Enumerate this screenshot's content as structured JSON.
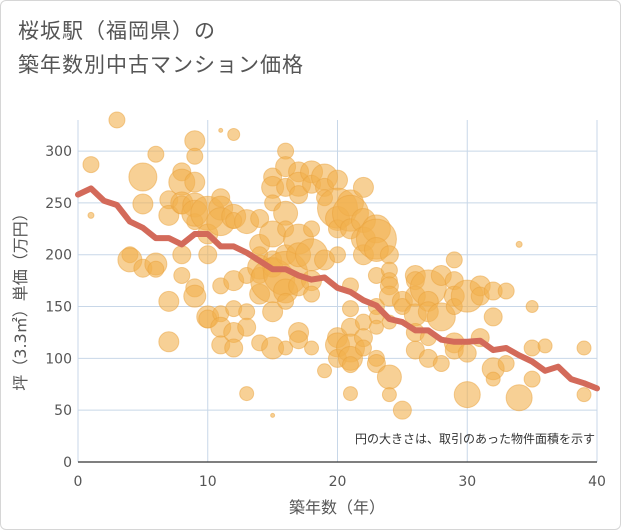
{
  "chart_data": {
    "type": "scatter",
    "title_lines": [
      "桜坂駅（福岡県）の",
      "築年数別中古マンション価格"
    ],
    "xlabel": "築年数（年）",
    "ylabel": "坪（3.3㎡）単価（万円）",
    "note": "円の大きさは、取引のあった物件面積を示す",
    "xlim": [
      0,
      40
    ],
    "ylim": [
      0,
      330
    ],
    "x_ticks": [
      0,
      10,
      20,
      30,
      40
    ],
    "y_ticks": [
      0,
      50,
      100,
      150,
      200,
      250,
      300
    ],
    "grid": true,
    "colors": {
      "bubble": "#f2b04e",
      "trend": "#d36a5a",
      "grid": "#c8d7e8"
    },
    "trend": {
      "x": [
        0,
        1,
        2,
        3,
        4,
        5,
        6,
        7,
        8,
        9,
        10,
        11,
        12,
        13,
        14,
        15,
        16,
        17,
        18,
        19,
        20,
        21,
        22,
        23,
        24,
        25,
        26,
        27,
        28,
        29,
        30,
        31,
        32,
        33,
        34,
        35,
        36,
        37,
        38,
        39,
        40
      ],
      "y": [
        258,
        264,
        252,
        248,
        232,
        226,
        216,
        216,
        210,
        220,
        220,
        208,
        208,
        202,
        194,
        186,
        186,
        180,
        176,
        178,
        168,
        164,
        156,
        151,
        138,
        135,
        127,
        127,
        118,
        116,
        116,
        117,
        108,
        110,
        103,
        97,
        88,
        92,
        80,
        76,
        71
      ]
    },
    "points": [
      [
        1,
        287,
        8
      ],
      [
        3,
        330,
        8
      ],
      [
        4,
        200,
        8
      ],
      [
        4,
        195,
        12
      ],
      [
        5,
        275,
        14
      ],
      [
        5,
        249,
        10
      ],
      [
        5,
        187,
        9
      ],
      [
        6,
        297,
        8
      ],
      [
        6,
        191,
        11
      ],
      [
        6,
        186,
        8
      ],
      [
        7,
        253,
        9
      ],
      [
        7,
        238,
        10
      ],
      [
        7,
        155,
        10
      ],
      [
        7,
        116,
        10
      ],
      [
        8,
        280,
        9
      ],
      [
        8,
        270,
        13
      ],
      [
        8,
        250,
        11
      ],
      [
        8,
        248,
        9
      ],
      [
        8,
        200,
        9
      ],
      [
        8,
        180,
        8
      ],
      [
        9,
        310,
        10
      ],
      [
        9,
        295,
        8
      ],
      [
        9,
        270,
        10
      ],
      [
        9,
        248,
        12
      ],
      [
        9,
        232,
        8
      ],
      [
        9,
        240,
        13
      ],
      [
        9,
        168,
        9
      ],
      [
        9,
        160,
        11
      ],
      [
        10,
        240,
        17
      ],
      [
        10,
        220,
        10
      ],
      [
        10,
        200,
        9
      ],
      [
        10,
        140,
        11
      ],
      [
        10,
        138,
        9
      ],
      [
        11,
        255,
        9
      ],
      [
        11,
        245,
        12
      ],
      [
        11,
        232,
        14
      ],
      [
        11,
        170,
        8
      ],
      [
        11,
        143,
        8
      ],
      [
        11,
        130,
        10
      ],
      [
        11,
        113,
        9
      ],
      [
        12,
        316,
        6
      ],
      [
        12,
        237,
        12
      ],
      [
        12,
        233,
        8
      ],
      [
        12,
        175,
        10
      ],
      [
        12,
        148,
        8
      ],
      [
        12,
        125,
        10
      ],
      [
        12,
        110,
        9
      ],
      [
        13,
        232,
        12
      ],
      [
        13,
        180,
        8
      ],
      [
        13,
        145,
        8
      ],
      [
        13,
        130,
        9
      ],
      [
        13,
        66,
        7
      ],
      [
        14,
        235,
        9
      ],
      [
        14,
        210,
        10
      ],
      [
        14,
        200,
        8
      ],
      [
        14,
        188,
        12
      ],
      [
        14,
        180,
        8
      ],
      [
        14,
        162,
        10
      ],
      [
        14,
        115,
        8
      ],
      [
        15,
        275,
        9
      ],
      [
        15,
        265,
        11
      ],
      [
        15,
        250,
        8
      ],
      [
        15,
        220,
        13
      ],
      [
        15,
        195,
        9
      ],
      [
        15,
        188,
        10
      ],
      [
        15,
        175,
        22
      ],
      [
        15,
        145,
        10
      ],
      [
        15,
        110,
        11
      ],
      [
        16,
        300,
        8
      ],
      [
        16,
        285,
        10
      ],
      [
        16,
        265,
        9
      ],
      [
        16,
        240,
        12
      ],
      [
        16,
        225,
        8
      ],
      [
        16,
        200,
        10
      ],
      [
        16,
        182,
        22
      ],
      [
        16,
        165,
        12
      ],
      [
        16,
        155,
        8
      ],
      [
        16,
        110,
        7
      ],
      [
        17,
        280,
        10
      ],
      [
        17,
        268,
        12
      ],
      [
        17,
        258,
        9
      ],
      [
        17,
        215,
        15
      ],
      [
        17,
        200,
        12
      ],
      [
        17,
        170,
        10
      ],
      [
        17,
        125,
        10
      ],
      [
        17,
        118,
        9
      ],
      [
        18,
        280,
        11
      ],
      [
        18,
        268,
        9
      ],
      [
        18,
        225,
        8
      ],
      [
        18,
        200,
        16
      ],
      [
        18,
        175,
        10
      ],
      [
        18,
        162,
        8
      ],
      [
        18,
        110,
        7
      ],
      [
        19,
        275,
        13
      ],
      [
        19,
        265,
        9
      ],
      [
        19,
        255,
        8
      ],
      [
        19,
        195,
        10
      ],
      [
        19,
        88,
        7
      ],
      [
        20,
        272,
        10
      ],
      [
        20,
        245,
        20
      ],
      [
        20,
        235,
        12
      ],
      [
        20,
        225,
        9
      ],
      [
        20,
        200,
        8
      ],
      [
        20,
        120,
        10
      ],
      [
        20,
        113,
        12
      ],
      [
        20,
        100,
        9
      ],
      [
        21,
        250,
        13
      ],
      [
        21,
        240,
        18
      ],
      [
        21,
        225,
        10
      ],
      [
        21,
        170,
        8
      ],
      [
        21,
        148,
        8
      ],
      [
        21,
        130,
        9
      ],
      [
        21,
        110,
        14
      ],
      [
        21,
        100,
        12
      ],
      [
        21,
        94,
        8
      ],
      [
        21,
        66,
        7
      ],
      [
        22,
        265,
        10
      ],
      [
        22,
        233,
        12
      ],
      [
        22,
        215,
        12
      ],
      [
        22,
        200,
        10
      ],
      [
        22,
        135,
        8
      ],
      [
        22,
        120,
        9
      ],
      [
        22,
        110,
        8
      ],
      [
        23,
        225,
        14
      ],
      [
        23,
        215,
        20
      ],
      [
        23,
        205,
        12
      ],
      [
        23,
        180,
        8
      ],
      [
        23,
        150,
        8
      ],
      [
        23,
        140,
        7
      ],
      [
        23,
        130,
        7
      ],
      [
        23,
        100,
        8
      ],
      [
        23,
        95,
        9
      ],
      [
        24,
        200,
        9
      ],
      [
        24,
        185,
        8
      ],
      [
        24,
        175,
        8
      ],
      [
        24,
        170,
        9
      ],
      [
        24,
        160,
        10
      ],
      [
        24,
        135,
        7
      ],
      [
        24,
        82,
        12
      ],
      [
        24,
        65,
        7
      ],
      [
        25,
        50,
        9
      ],
      [
        25,
        155,
        10
      ],
      [
        25,
        150,
        8
      ],
      [
        26,
        180,
        10
      ],
      [
        26,
        175,
        9
      ],
      [
        26,
        160,
        10
      ],
      [
        26,
        142,
        11
      ],
      [
        26,
        125,
        9
      ],
      [
        26,
        108,
        9
      ],
      [
        27,
        168,
        18
      ],
      [
        27,
        155,
        10
      ],
      [
        27,
        145,
        10
      ],
      [
        27,
        120,
        8
      ],
      [
        27,
        100,
        9
      ],
      [
        28,
        180,
        10
      ],
      [
        28,
        140,
        14
      ],
      [
        28,
        95,
        8
      ],
      [
        29,
        195,
        8
      ],
      [
        29,
        175,
        9
      ],
      [
        29,
        160,
        10
      ],
      [
        29,
        150,
        8
      ],
      [
        29,
        115,
        10
      ],
      [
        29,
        108,
        9
      ],
      [
        30,
        160,
        16
      ],
      [
        30,
        105,
        9
      ],
      [
        30,
        65,
        13
      ],
      [
        31,
        170,
        10
      ],
      [
        31,
        160,
        9
      ],
      [
        31,
        120,
        9
      ],
      [
        32,
        165,
        9
      ],
      [
        32,
        140,
        9
      ],
      [
        32,
        90,
        11
      ],
      [
        32,
        80,
        7
      ],
      [
        33,
        165,
        8
      ],
      [
        33,
        95,
        8
      ],
      [
        34,
        62,
        13
      ],
      [
        35,
        150,
        6
      ],
      [
        35,
        110,
        8
      ],
      [
        35,
        80,
        8
      ],
      [
        36,
        112,
        7
      ],
      [
        39,
        110,
        7
      ],
      [
        39,
        65,
        7
      ],
      [
        1,
        238,
        3
      ],
      [
        11,
        320,
        2
      ],
      [
        15,
        45,
        2
      ],
      [
        34,
        210,
        3
      ]
    ]
  }
}
